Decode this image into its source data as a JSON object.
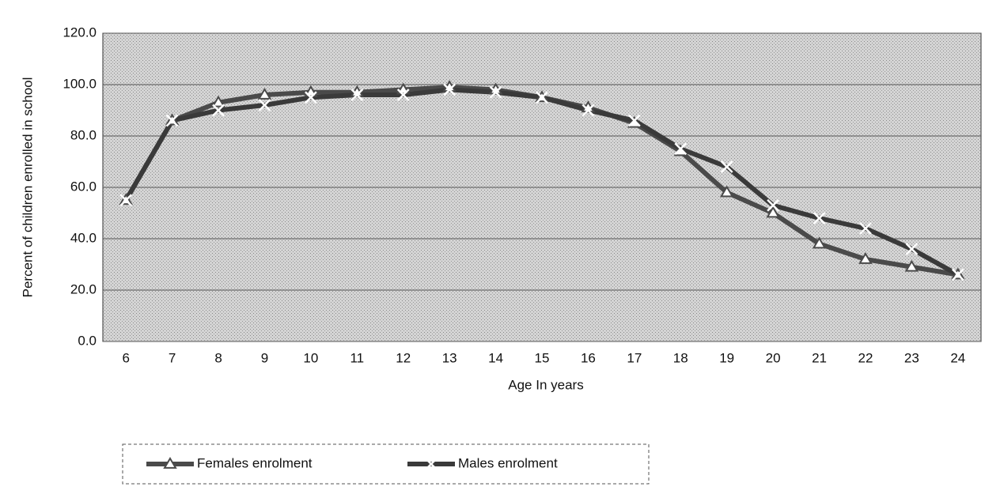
{
  "chart_data": {
    "type": "line",
    "x_label": "Age In years",
    "y_label": "Percent of children enrolled in school",
    "categories": [
      "6",
      "7",
      "8",
      "9",
      "10",
      "11",
      "12",
      "13",
      "14",
      "15",
      "16",
      "17",
      "18",
      "19",
      "20",
      "21",
      "22",
      "23",
      "24"
    ],
    "series": [
      {
        "name": "Females enrolment",
        "color": "#4a4a4a",
        "marker": "triangle",
        "values": [
          55,
          86,
          93,
          96,
          97,
          97,
          98,
          99,
          98,
          95,
          91,
          85,
          74,
          58,
          50,
          38,
          32,
          29,
          26
        ]
      },
      {
        "name": "Males enrolment",
        "color": "#3a3a3a",
        "marker": "x",
        "values": [
          55,
          86,
          90,
          92,
          95,
          96,
          96,
          98,
          97,
          95,
          90,
          86,
          75,
          68,
          53,
          48,
          44,
          36,
          26
        ]
      }
    ],
    "ylim": [
      0,
      120
    ],
    "yticks": [
      {
        "value": 0,
        "label": "0.0"
      },
      {
        "value": 20,
        "label": "20.0"
      },
      {
        "value": 40,
        "label": "40.0"
      },
      {
        "value": 60,
        "label": "60.0"
      },
      {
        "value": 80,
        "label": "80.0"
      },
      {
        "value": 100,
        "label": "100.0"
      },
      {
        "value": 120,
        "label": "120.0"
      }
    ],
    "grid": true,
    "legend": "bottom"
  }
}
